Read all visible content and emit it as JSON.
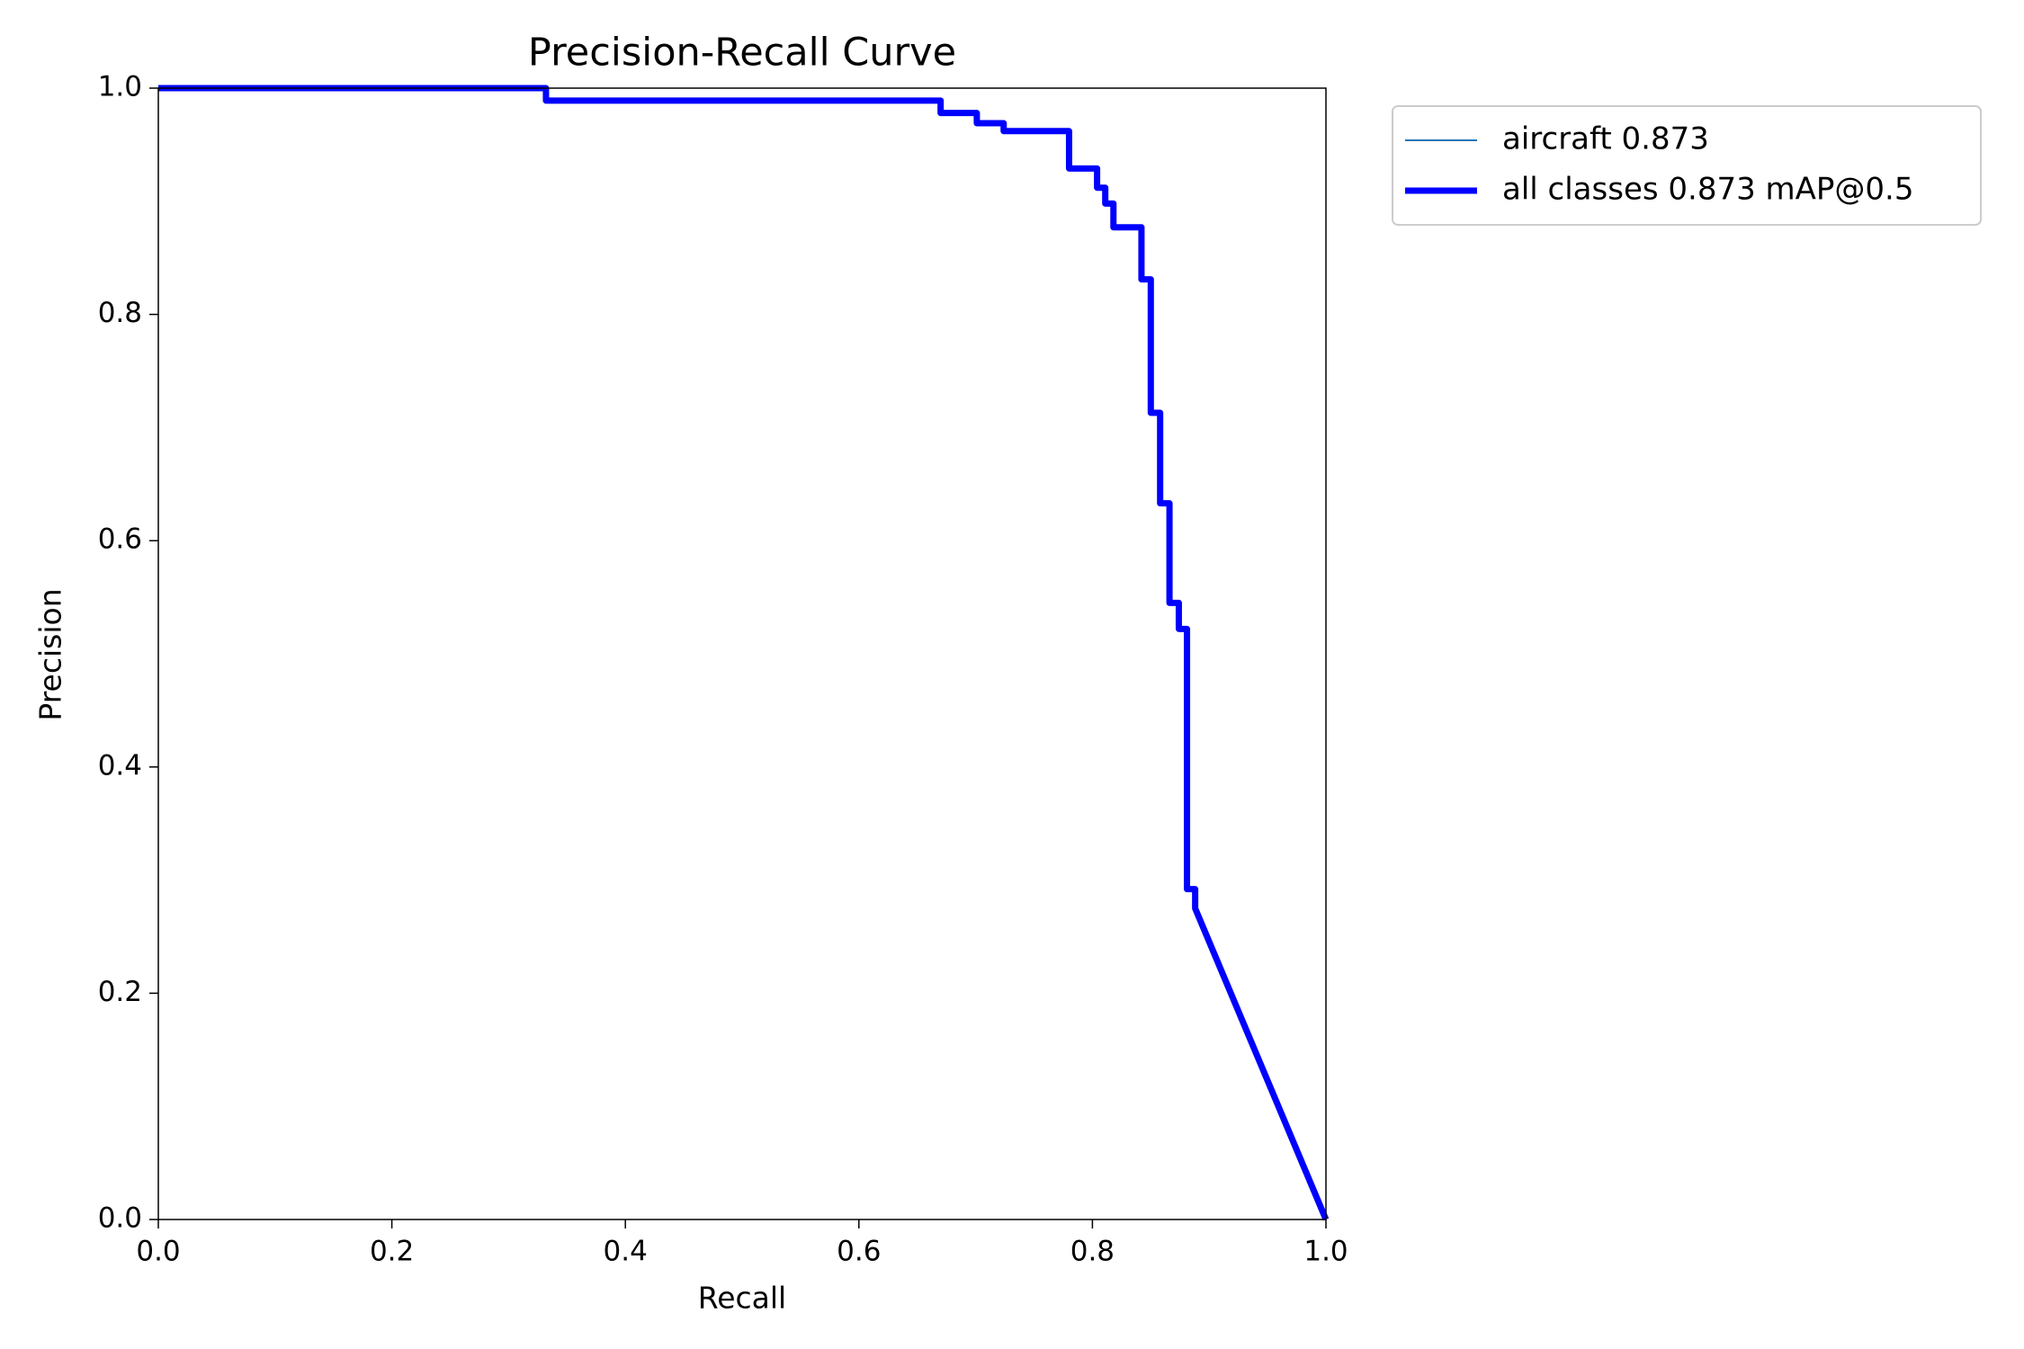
{
  "chart_data": {
    "type": "line",
    "title": "Precision-Recall Curve",
    "xlabel": "Recall",
    "ylabel": "Precision",
    "x": [
      0,
      0.332,
      0.332,
      0.67,
      0.67,
      0.701,
      0.701,
      0.724,
      0.724,
      0.78,
      0.78,
      0.804,
      0.804,
      0.811,
      0.811,
      0.818,
      0.818,
      0.842,
      0.842,
      0.85,
      0.85,
      0.858,
      0.858,
      0.866,
      0.866,
      0.874,
      0.874,
      0.881,
      0.881,
      0.888,
      0.888,
      1.0
    ],
    "series": [
      {
        "name": "aircraft 0.873",
        "color": "#1f77b4",
        "width": "thin",
        "values": [
          1,
          1,
          0.989,
          0.989,
          0.978,
          0.978,
          0.969,
          0.969,
          0.962,
          0.962,
          0.929,
          0.929,
          0.912,
          0.912,
          0.898,
          0.898,
          0.877,
          0.877,
          0.831,
          0.831,
          0.713,
          0.713,
          0.633,
          0.633,
          0.545,
          0.545,
          0.522,
          0.522,
          0.292,
          0.292,
          0.275,
          0
        ]
      },
      {
        "name": "all classes 0.873 mAP@0.5",
        "color": "#0000ff",
        "width": "thick",
        "values": [
          1,
          1,
          0.989,
          0.989,
          0.978,
          0.978,
          0.969,
          0.969,
          0.962,
          0.962,
          0.929,
          0.929,
          0.912,
          0.912,
          0.898,
          0.898,
          0.877,
          0.877,
          0.831,
          0.831,
          0.713,
          0.713,
          0.633,
          0.633,
          0.545,
          0.545,
          0.522,
          0.522,
          0.292,
          0.292,
          0.275,
          0
        ]
      }
    ],
    "xlim": [
      0,
      1
    ],
    "ylim": [
      0,
      1
    ],
    "xticks": [
      {
        "value": 0,
        "label": "0.0"
      },
      0.2,
      0.4,
      0.6,
      0.8,
      {
        "value": 1,
        "label": "1.0"
      }
    ],
    "yticks": [
      {
        "value": 0,
        "label": "0.0"
      },
      0.2,
      0.4,
      0.6,
      0.8,
      {
        "value": 1,
        "label": "1.0"
      }
    ],
    "grid": false,
    "legend": "outside upper right"
  }
}
